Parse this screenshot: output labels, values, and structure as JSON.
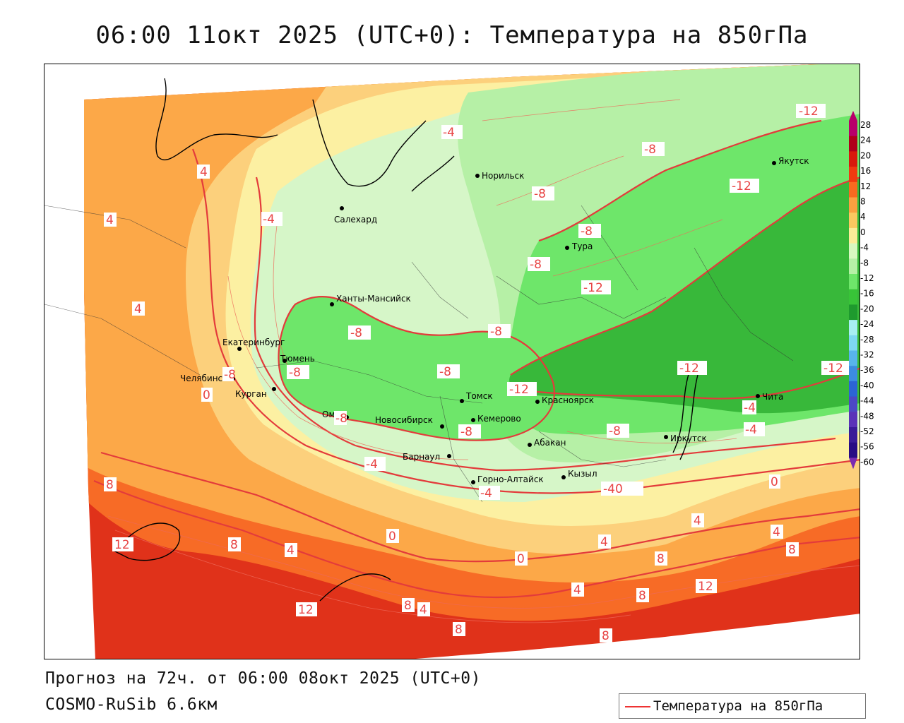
{
  "title": "06:00 11окт 2025 (UTC+0): Температура на 850гПа",
  "footer": {
    "forecast": "Прогноз на 72ч. от 06:00 08окт 2025 (UTC+0)",
    "model": "COSMO-RuSib 6.6км"
  },
  "legend": {
    "label": "Температура на 850гПа",
    "line_color": "#e33b3b"
  },
  "cities": {
    "norilsk": "Норильск",
    "yakutsk": "Якутск",
    "salekhard": "Салехард",
    "tura": "Тура",
    "khanty": "Ханты-Мансийск",
    "ekaterinburg": "Екатеринбург",
    "tyumen": "Тюмень",
    "chelyabinsk": "Челябинск",
    "kurgan": "Курган",
    "omsk": "Омск",
    "novosibirsk": "Новосибирск",
    "tomsk": "Томск",
    "krasnoyarsk": "Красноярск",
    "kemerovo": "Кемерово",
    "abakan": "Абакан",
    "barnaul": "Барнаул",
    "irkutsk": "Иркутск",
    "chita": "Чита",
    "kyzyl": "Кызыл",
    "gorno": "Горно-Алтайск"
  },
  "contour_labels": {
    "l1": "-12",
    "l2": "-4",
    "l3": "-8",
    "l4": "-12",
    "l5": "4",
    "l6": "-8",
    "l7": "4",
    "l8": "-4",
    "l9": "-8",
    "l10": "-8",
    "l11": "-12",
    "l12": "4",
    "l13": "-8",
    "l14": "-8",
    "l15": "-12",
    "l16": "-8",
    "l17": "-8",
    "l18": "-12",
    "l19": "-12",
    "l20": "-8",
    "l21": "0",
    "l22": "-8",
    "l23": "-8",
    "l24": "-8",
    "l25": "-4",
    "l26": "-4",
    "l27": "-4",
    "l28": "-4",
    "l29": "-40",
    "l30": "0",
    "l31": "8",
    "l32": "12",
    "l33": "8",
    "l34": "4",
    "l35": "0",
    "l36": "0",
    "l37": "4",
    "l38": "4",
    "l39": "8",
    "l40": "4",
    "l41": "8",
    "l42": "4",
    "l43": "8",
    "l44": "12",
    "l45": "12",
    "l46": "8",
    "l47": "4",
    "l48": "8",
    "l49": "8"
  },
  "colorbar": {
    "ticks": [
      "28",
      "24",
      "20",
      "16",
      "12",
      "8",
      "4",
      "0",
      "-4",
      "-8",
      "-12",
      "-16",
      "-20",
      "-24",
      "-28",
      "-32",
      "-36",
      "-40",
      "-44",
      "-48",
      "-52",
      "-56",
      "-60"
    ],
    "colors": [
      "#b8006a",
      "#b0001a",
      "#d81a0c",
      "#f03a10",
      "#f86a20",
      "#fca040",
      "#fcc860",
      "#fcec98",
      "#d8f8c0",
      "#b6f0a6",
      "#6ee66a",
      "#38c438",
      "#1e9a2e",
      "#a8eef4",
      "#7ed8f4",
      "#58b4ec",
      "#3c8ce0",
      "#2c64d4",
      "#4c48c4",
      "#5a34b8",
      "#3a1c98",
      "#280c84",
      "#7a2ab0"
    ]
  },
  "colors": {
    "contour": "#e33b3b",
    "green_dark": "#38b83a",
    "green_mid": "#6ee66a",
    "green_light": "#b6f0a6",
    "pale_green": "#d6f6c8",
    "yellow": "#fcf0a2",
    "orange_light": "#fcd07c",
    "orange": "#fca848",
    "red_orange": "#f76b26",
    "red": "#e0321a"
  }
}
